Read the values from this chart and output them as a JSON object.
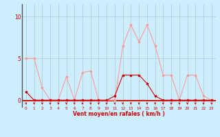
{
  "hours": [
    0,
    1,
    2,
    3,
    4,
    5,
    6,
    7,
    8,
    9,
    10,
    11,
    12,
    13,
    14,
    15,
    16,
    17,
    18,
    19,
    20,
    21,
    22,
    23
  ],
  "rafales": [
    5.0,
    5.0,
    1.5,
    0.0,
    0.0,
    2.8,
    0.0,
    3.3,
    3.5,
    0.0,
    0.0,
    0.0,
    6.5,
    9.0,
    7.0,
    9.0,
    6.5,
    3.0,
    3.0,
    0.0,
    3.0,
    3.0,
    0.5,
    0.0
  ],
  "vent_moyen": [
    1.0,
    0.0,
    0.0,
    0.0,
    0.0,
    0.0,
    0.0,
    0.0,
    0.0,
    0.0,
    0.0,
    0.5,
    3.0,
    3.0,
    3.0,
    2.0,
    0.5,
    0.0,
    0.0,
    0.0,
    0.0,
    0.0,
    0.0,
    0.0
  ],
  "color_rafales": "#ff9999",
  "color_vent": "#cc0000",
  "bg_color": "#cceeff",
  "grid_color": "#aacccc",
  "xlabel": "Vent moyen/en rafales ( km/h )",
  "yticks": [
    0,
    5,
    10
  ],
  "ylim": [
    -0.8,
    11.5
  ],
  "xlim": [
    -0.5,
    23.5
  ]
}
